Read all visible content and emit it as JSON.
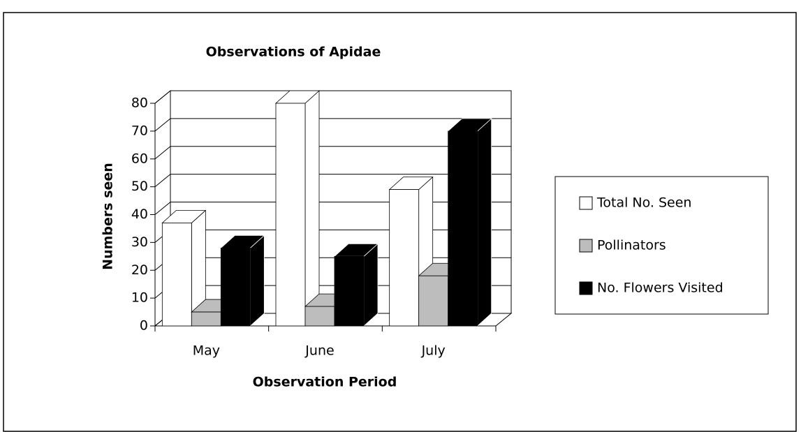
{
  "chart_data": {
    "type": "bar3d",
    "title": "Observations of Apidae",
    "x_label": "Observation Period",
    "y_label": "Numbers seen",
    "categories": [
      "May",
      "June",
      "July"
    ],
    "series": [
      {
        "name": "Total No. Seen",
        "color": "#ffffff",
        "values": [
          37,
          80,
          49
        ]
      },
      {
        "name": "Pollinators",
        "color": "#bdbdbd",
        "values": [
          5,
          7,
          18
        ]
      },
      {
        "name": "No. Flowers Visited",
        "color": "#000000",
        "values": [
          28,
          25,
          70
        ]
      }
    ],
    "ylim": [
      0,
      80
    ],
    "yticks": [
      0,
      10,
      20,
      30,
      40,
      50,
      60,
      70,
      80
    ],
    "grid": true,
    "legend": "right"
  }
}
